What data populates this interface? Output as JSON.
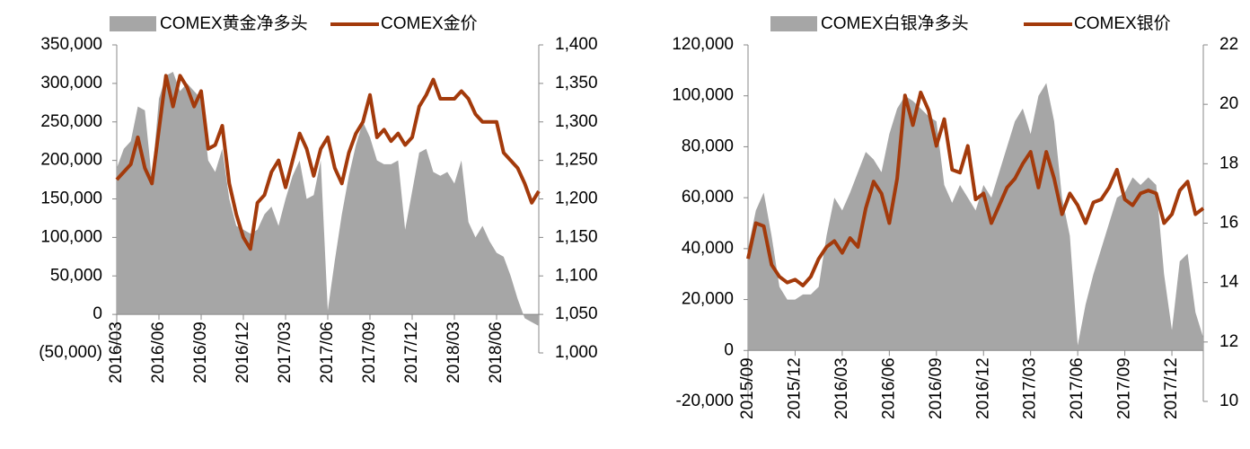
{
  "chart_data": [
    {
      "type": "area-line",
      "categories": [
        "2016/03",
        null,
        null,
        null,
        null,
        null,
        "2016/06",
        null,
        null,
        null,
        null,
        null,
        "2016/09",
        null,
        null,
        null,
        null,
        null,
        "2016/12",
        null,
        null,
        null,
        null,
        null,
        "2017/03",
        null,
        null,
        null,
        null,
        null,
        "2017/06",
        null,
        null,
        null,
        null,
        null,
        "2017/09",
        null,
        null,
        null,
        null,
        null,
        "2017/12",
        null,
        null,
        null,
        null,
        null,
        "2018/03",
        null,
        null,
        null,
        null,
        null,
        "2018/06",
        null,
        null,
        null,
        null,
        null,
        null
      ],
      "series": [
        {
          "name": "COMEX黄金净多头",
          "color": "#a6a6a6",
          "kind": "area",
          "values": [
            190000,
            215000,
            225000,
            270000,
            265000,
            175000,
            280000,
            310000,
            315000,
            290000,
            300000,
            290000,
            280000,
            200000,
            185000,
            215000,
            150000,
            115000,
            110000,
            105000,
            110000,
            130000,
            140000,
            115000,
            150000,
            180000,
            200000,
            150000,
            155000,
            200000,
            5000,
            70000,
            130000,
            180000,
            220000,
            250000,
            230000,
            200000,
            195000,
            195000,
            200000,
            110000,
            160000,
            210000,
            215000,
            185000,
            180000,
            185000,
            170000,
            200000,
            120000,
            100000,
            115000,
            95000,
            80000,
            75000,
            50000,
            20000,
            -5000,
            -10000,
            -15000
          ]
        },
        {
          "name": "COMEX金价",
          "color": "#a33a0b",
          "kind": "line",
          "axis": "y2",
          "values": [
            1225,
            1235,
            1245,
            1280,
            1240,
            1220,
            1290,
            1360,
            1320,
            1360,
            1345,
            1320,
            1340,
            1265,
            1270,
            1295,
            1220,
            1180,
            1150,
            1135,
            1195,
            1205,
            1235,
            1250,
            1215,
            1250,
            1285,
            1265,
            1230,
            1265,
            1280,
            1240,
            1220,
            1260,
            1285,
            1300,
            1335,
            1280,
            1290,
            1275,
            1285,
            1270,
            1280,
            1320,
            1335,
            1355,
            1330,
            1330,
            1330,
            1340,
            1330,
            1310,
            1300,
            1300,
            1300,
            1260,
            1250,
            1240,
            1220,
            1195,
            1210
          ]
        }
      ],
      "ylim": [
        -50000,
        350000
      ],
      "yticks": [
        {
          "value": -50000,
          "label": "(50,000)"
        },
        0,
        {
          "value": 50000,
          "label": "50,000"
        },
        {
          "value": 100000,
          "label": "100,000"
        },
        {
          "value": 150000,
          "label": "150,000"
        },
        {
          "value": 200000,
          "label": "200,000"
        },
        {
          "value": 250000,
          "label": "250,000"
        },
        {
          "value": 300000,
          "label": "300,000"
        },
        {
          "value": 350000,
          "label": "350,000"
        }
      ],
      "y2lim": [
        1000,
        1400
      ],
      "y2ticks": [
        {
          "value": 1000,
          "label": "1,000"
        },
        {
          "value": 1050,
          "label": "1,050"
        },
        {
          "value": 1100,
          "label": "1,100"
        },
        {
          "value": 1150,
          "label": "1,150"
        },
        {
          "value": 1200,
          "label": "1,200"
        },
        {
          "value": 1250,
          "label": "1,250"
        },
        {
          "value": 1300,
          "label": "1,300"
        },
        {
          "value": 1350,
          "label": "1,350"
        },
        {
          "value": 1400,
          "label": "1,400"
        }
      ],
      "legend": "top"
    },
    {
      "type": "area-line",
      "categories": [
        "2015/09",
        null,
        null,
        null,
        null,
        null,
        "2015/12",
        null,
        null,
        null,
        null,
        null,
        "2016/03",
        null,
        null,
        null,
        null,
        null,
        "2016/06",
        null,
        null,
        null,
        null,
        null,
        "2016/09",
        null,
        null,
        null,
        null,
        null,
        "2016/12",
        null,
        null,
        null,
        null,
        null,
        "2017/03",
        null,
        null,
        null,
        null,
        null,
        "2017/06",
        null,
        null,
        null,
        null,
        null,
        "2017/09",
        null,
        null,
        null,
        null,
        null,
        "2017/12",
        null,
        null,
        null,
        null
      ],
      "series": [
        {
          "name": "COMEX白银净多头",
          "color": "#a6a6a6",
          "kind": "area",
          "values": [
            40000,
            55000,
            62000,
            45000,
            25000,
            20000,
            20000,
            22000,
            22000,
            25000,
            45000,
            60000,
            55000,
            62000,
            70000,
            78000,
            75000,
            70000,
            85000,
            95000,
            100000,
            98000,
            95000,
            92000,
            90000,
            65000,
            58000,
            65000,
            60000,
            55000,
            65000,
            60000,
            70000,
            80000,
            90000,
            95000,
            85000,
            100000,
            105000,
            90000,
            60000,
            45000,
            2000,
            18000,
            30000,
            40000,
            50000,
            60000,
            62000,
            68000,
            65000,
            68000,
            65000,
            30000,
            8000,
            35000,
            38000,
            15000,
            5000
          ]
        },
        {
          "name": "COMEX银价",
          "color": "#a33a0b",
          "kind": "line",
          "axis": "y2",
          "values": [
            14.8,
            16.0,
            15.9,
            14.6,
            14.2,
            14.0,
            14.1,
            13.9,
            14.2,
            14.8,
            15.2,
            15.4,
            15.0,
            15.5,
            15.2,
            16.5,
            17.4,
            17.0,
            16.0,
            17.5,
            20.3,
            19.3,
            20.4,
            19.8,
            18.6,
            19.5,
            17.8,
            17.7,
            18.6,
            16.8,
            17.0,
            16.0,
            16.6,
            17.2,
            17.5,
            18.0,
            18.4,
            17.2,
            18.4,
            17.5,
            16.3,
            17.0,
            16.6,
            16.0,
            16.7,
            16.8,
            17.2,
            17.8,
            16.8,
            16.6,
            17.0,
            17.1,
            17.0,
            16.0,
            16.3,
            17.1,
            17.4,
            16.3,
            16.5
          ]
        }
      ],
      "ylim": [
        -20000,
        120000
      ],
      "yticks": [
        {
          "value": -20000,
          "label": "-20,000"
        },
        0,
        {
          "value": 20000,
          "label": "20,000"
        },
        {
          "value": 40000,
          "label": "40,000"
        },
        {
          "value": 60000,
          "label": "60,000"
        },
        {
          "value": 80000,
          "label": "80,000"
        },
        {
          "value": 100000,
          "label": "100,000"
        },
        {
          "value": 120000,
          "label": "120,000"
        }
      ],
      "y2lim": [
        10,
        22
      ],
      "y2ticks": [
        10,
        12,
        14,
        16,
        18,
        20,
        22
      ],
      "legend": "top"
    }
  ]
}
